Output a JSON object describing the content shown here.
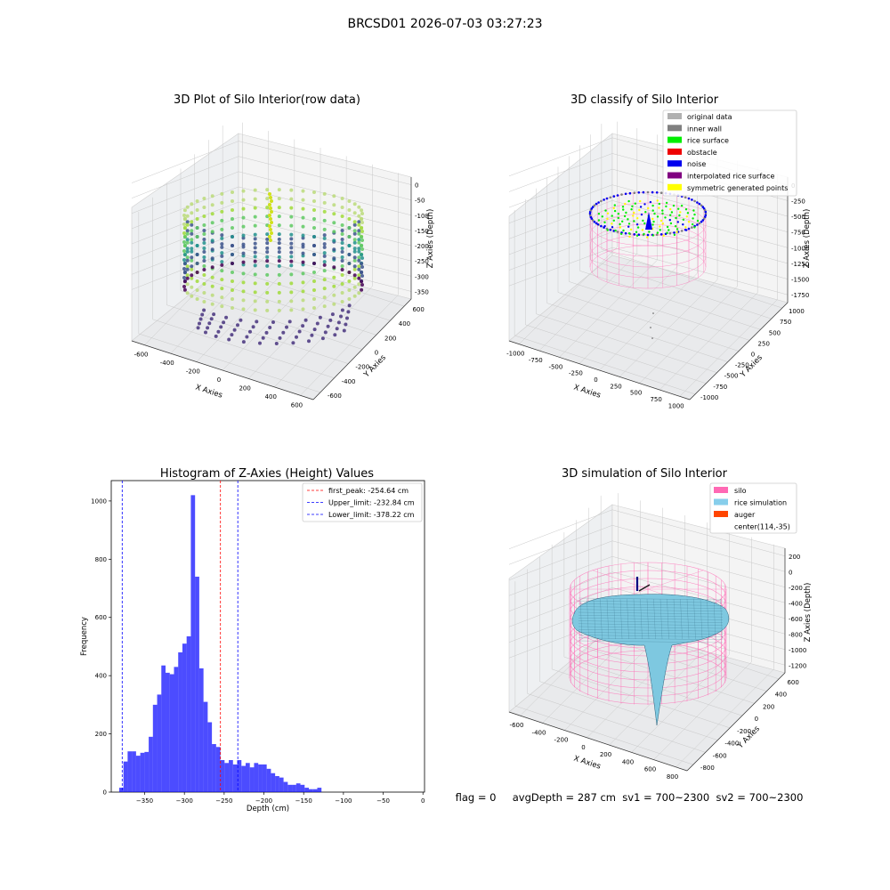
{
  "suptitle": "BRCSD01 2026-07-03 03:27:23",
  "panel_raw": {
    "title": "3D Plot of Silo Interior(row data)",
    "xlabel": "X Axies",
    "ylabel": "Y Axies",
    "zlabel": "Z Axies (Depth)",
    "xticks": [
      "-600",
      "-400",
      "-200",
      "0",
      "200",
      "400",
      "600"
    ],
    "yticks": [
      "-600",
      "-400",
      "-200",
      "0",
      "200",
      "400",
      "600"
    ],
    "zticks": [
      "0",
      "-50",
      "-100",
      "-150",
      "-200",
      "-250",
      "-300",
      "-350"
    ]
  },
  "panel_classify": {
    "title": "3D classify of Silo Interior",
    "xlabel": "X Axies",
    "ylabel": "Y Axies",
    "zlabel": "Z Axies (Depth)",
    "xticks": [
      "-1000",
      "-750",
      "-500",
      "-250",
      "0",
      "250",
      "500",
      "750",
      "1000"
    ],
    "yticks": [
      "-1000",
      "-750",
      "-500",
      "-250",
      "0",
      "250",
      "500",
      "750",
      "1000"
    ],
    "zticks": [
      "0",
      "-250",
      "-500",
      "-750",
      "-1000",
      "-1250",
      "-1500",
      "-1750"
    ],
    "legend": [
      {
        "label": "original data",
        "color": "#b0b0b0"
      },
      {
        "label": "inner wall",
        "color": "#808080"
      },
      {
        "label": "rice surface",
        "color": "#00ee00"
      },
      {
        "label": "obstacle",
        "color": "#ee0000"
      },
      {
        "label": "noise",
        "color": "#0000ee"
      },
      {
        "label": "interpolated rice surface",
        "color": "#800080"
      },
      {
        "label": "symmetric generated points",
        "color": "#ffff00"
      }
    ]
  },
  "panel_sim": {
    "title": "3D simulation of Silo Interior",
    "xlabel": "X Axies",
    "ylabel": "Y Axies",
    "zlabel": "Z Axies (Depth)",
    "xticks": [
      "-600",
      "-400",
      "-200",
      "0",
      "200",
      "400",
      "600",
      "800"
    ],
    "yticks": [
      "-800",
      "-600",
      "-400",
      "-200",
      "0",
      "200",
      "400",
      "600"
    ],
    "zticks": [
      "200",
      "0",
      "-200",
      "-400",
      "-600",
      "-800",
      "-1000",
      "-1200"
    ],
    "legend": [
      {
        "label": "silo",
        "color": "#ff69b4"
      },
      {
        "label": "rice simulation",
        "color": "#87ceeb"
      },
      {
        "label": "auger",
        "color": "#ff4500"
      },
      {
        "label": "center(114,-35)",
        "color": ""
      }
    ]
  },
  "status_line": "flag = 0     avgDepth = 287 cm  sv1 = 700~2300  sv2 = 700~2300",
  "chart_data": [
    {
      "type": "bar",
      "title": "Histogram of Z-Axies (Height) Values",
      "xlabel": "Depth (cm)",
      "ylabel": "Frequency",
      "xlim": [
        -392,
        2
      ],
      "ylim": [
        0,
        1070
      ],
      "xticks": [
        -350,
        -300,
        -250,
        -200,
        -150,
        -100,
        -50,
        0
      ],
      "yticks": [
        0,
        200,
        400,
        600,
        800,
        1000
      ],
      "bin_start": -382,
      "bin_width": 5.3,
      "values": [
        15,
        105,
        140,
        140,
        125,
        135,
        138,
        190,
        300,
        335,
        435,
        410,
        405,
        430,
        480,
        510,
        535,
        1020,
        740,
        425,
        310,
        240,
        165,
        155,
        110,
        100,
        110,
        95,
        110,
        90,
        100,
        85,
        100,
        95,
        95,
        80,
        65,
        55,
        50,
        35,
        25,
        25,
        30,
        25,
        15,
        10,
        10,
        15
      ],
      "bar_color": "#0000ff",
      "lines": [
        {
          "label": "first_peak: -254.64 cm",
          "x": -254.64,
          "color": "#ff0000"
        },
        {
          "label": "Upper_limit: -232.84 cm",
          "x": -232.84,
          "color": "#0000ff"
        },
        {
          "label": "Lower_limit: -378.22 cm",
          "x": -378.22,
          "color": "#0000ff"
        }
      ],
      "legend_position": "upper right"
    }
  ]
}
